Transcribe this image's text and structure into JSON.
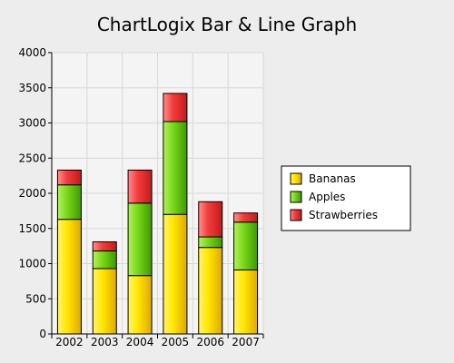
{
  "chart_data": {
    "type": "bar",
    "stacked": true,
    "title": "ChartLogix Bar & Line Graph",
    "xlabel": "",
    "ylabel": "",
    "categories": [
      "2002",
      "2003",
      "2004",
      "2005",
      "2006",
      "2007"
    ],
    "series": [
      {
        "name": "Bananas",
        "color": "#f2d000",
        "values": [
          1630,
          930,
          830,
          1700,
          1230,
          910
        ]
      },
      {
        "name": "Apples",
        "color": "#66cc00",
        "values": [
          490,
          250,
          1030,
          1320,
          150,
          680
        ]
      },
      {
        "name": "Strawberries",
        "color": "#ee2e2e",
        "values": [
          210,
          130,
          470,
          400,
          500,
          130
        ]
      }
    ],
    "ylim": [
      0,
      4000
    ],
    "yticks": [
      0,
      500,
      1000,
      1500,
      2000,
      2500,
      3000,
      3500,
      4000
    ],
    "grid": true,
    "legend_position": "right"
  }
}
